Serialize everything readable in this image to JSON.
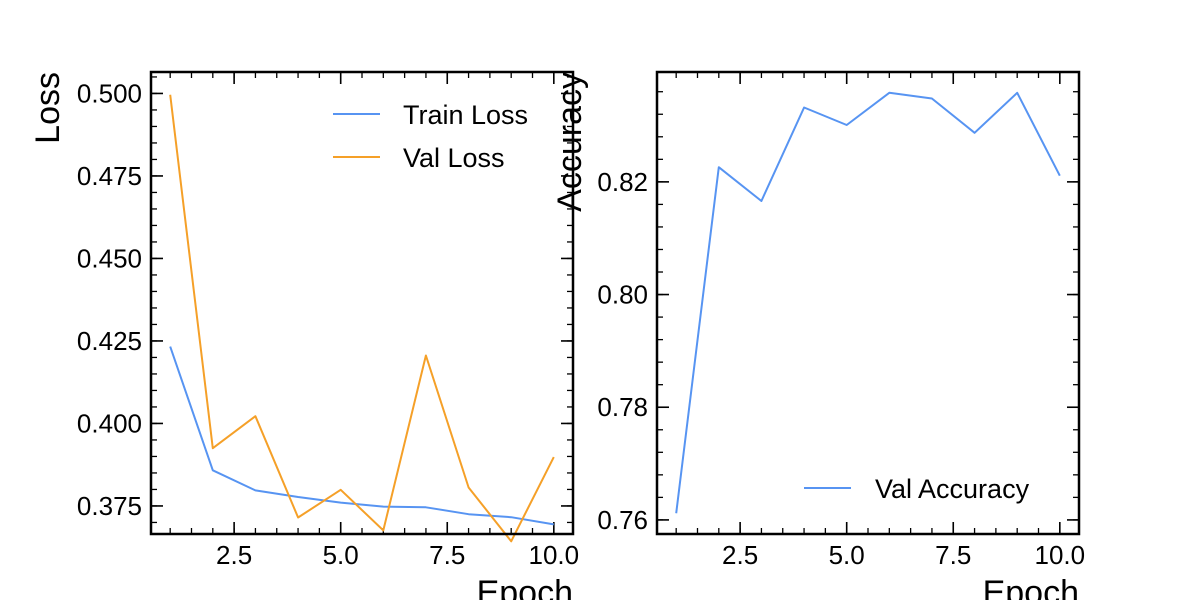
{
  "chart_data": [
    {
      "type": "line",
      "xlabel": "Epoch",
      "ylabel": "Loss",
      "xlim": [
        0.55,
        10.45
      ],
      "ylim": [
        0.3665,
        0.5065
      ],
      "x_ticks": [
        2.5,
        5.0,
        7.5,
        10.0
      ],
      "x_tick_labels": [
        "2.5",
        "5.0",
        "7.5",
        "10.0"
      ],
      "y_ticks": [
        0.375,
        0.4,
        0.425,
        0.45,
        0.475,
        0.5
      ],
      "y_tick_labels": [
        "0.375",
        "0.400",
        "0.425",
        "0.450",
        "0.475",
        "0.500"
      ],
      "legend_position": "top-right",
      "grid": false,
      "x": [
        1,
        2,
        3,
        4,
        5,
        6,
        7,
        8,
        9,
        10
      ],
      "series": [
        {
          "name": "Train Loss",
          "color": "#5794f2",
          "values": [
            0.4233,
            0.3858,
            0.3797,
            0.3777,
            0.376,
            0.3748,
            0.3746,
            0.3725,
            0.3716,
            0.3694
          ]
        },
        {
          "name": "Val Loss",
          "color": "#f5a028",
          "values": [
            0.4996,
            0.3925,
            0.4022,
            0.3715,
            0.3799,
            0.3676,
            0.4206,
            0.3806,
            0.3643,
            0.3898
          ]
        }
      ]
    },
    {
      "type": "line",
      "xlabel": "Epoch",
      "ylabel": "Accuracy",
      "xlim": [
        0.55,
        10.45
      ],
      "ylim": [
        0.7575,
        0.8395
      ],
      "x_ticks": [
        2.5,
        5.0,
        7.5,
        10.0
      ],
      "x_tick_labels": [
        "2.5",
        "5.0",
        "7.5",
        "10.0"
      ],
      "y_ticks": [
        0.76,
        0.78,
        0.8,
        0.82
      ],
      "y_tick_labels": [
        "0.76",
        "0.78",
        "0.80",
        "0.82"
      ],
      "legend_position": "bottom-right",
      "grid": false,
      "x": [
        1,
        2,
        3,
        4,
        5,
        6,
        7,
        8,
        9,
        10
      ],
      "series": [
        {
          "name": "Val Accuracy",
          "color": "#5794f2",
          "values": [
            0.7612,
            0.8226,
            0.8166,
            0.8332,
            0.8301,
            0.8358,
            0.8348,
            0.8287,
            0.8358,
            0.8211
          ]
        }
      ]
    }
  ]
}
